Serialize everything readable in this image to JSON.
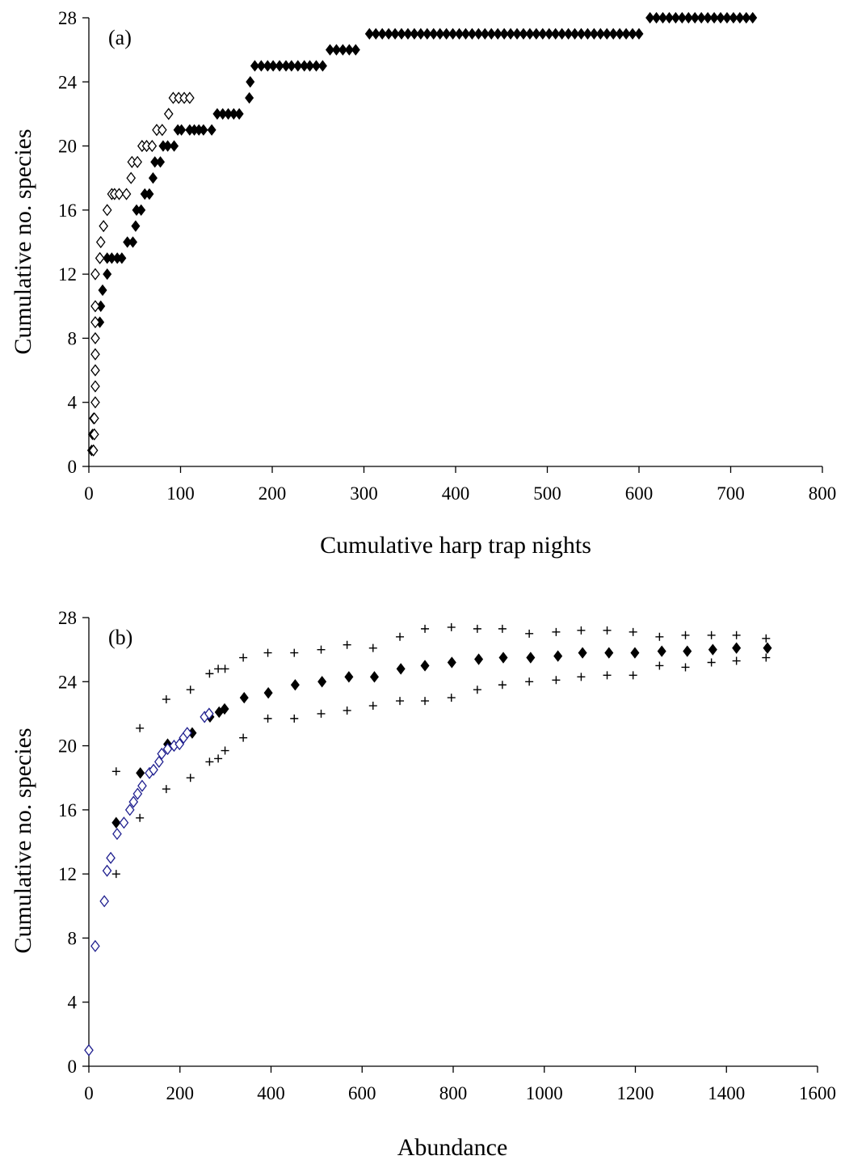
{
  "chart_data": [
    {
      "type": "scatter",
      "panel_label": "(a)",
      "xlabel": "Cumulative harp trap nights",
      "ylabel": "Cumulative no. species",
      "xlim": [
        0,
        800
      ],
      "ylim": [
        0,
        28
      ],
      "x_ticks": [
        0,
        100,
        200,
        300,
        400,
        500,
        600,
        700,
        800
      ],
      "y_ticks": [
        0,
        4,
        8,
        12,
        16,
        20,
        24,
        28
      ],
      "grid": false,
      "legend": "none",
      "series": [
        {
          "marker": "filled-diamond",
          "color": "#000000",
          "points": [
            [
              3,
              1
            ],
            [
              4,
              2
            ],
            [
              5,
              3
            ],
            [
              12,
              9
            ],
            [
              13,
              10
            ],
            [
              15,
              11
            ],
            [
              20,
              12
            ],
            [
              20,
              13
            ],
            [
              25,
              13
            ],
            [
              31,
              13
            ],
            [
              36,
              13
            ],
            [
              42,
              14
            ],
            [
              48,
              14
            ],
            [
              51,
              15
            ],
            [
              52,
              16
            ],
            [
              57,
              16
            ],
            [
              61,
              17
            ],
            [
              66,
              17
            ],
            [
              70,
              18
            ],
            [
              72,
              19
            ],
            [
              78,
              19
            ],
            [
              81,
              20
            ],
            [
              86,
              20
            ],
            [
              93,
              20
            ],
            [
              97,
              21
            ],
            [
              101,
              21
            ],
            [
              110,
              21
            ],
            [
              115,
              21
            ],
            [
              120,
              21
            ],
            [
              125,
              21
            ],
            [
              134,
              21
            ],
            [
              140,
              22
            ],
            [
              146,
              22
            ],
            [
              152,
              22
            ],
            [
              158,
              22
            ],
            [
              164,
              22
            ],
            [
              175,
              23
            ],
            [
              176,
              24
            ],
            [
              181,
              25
            ],
            [
              188,
              25
            ],
            [
              195,
              25
            ],
            [
              201,
              25
            ],
            [
              208,
              25
            ],
            [
              215,
              25
            ],
            [
              221,
              25
            ],
            [
              228,
              25
            ],
            [
              235,
              25
            ],
            [
              241,
              25
            ],
            [
              248,
              25
            ],
            [
              255,
              25
            ],
            [
              263,
              26
            ],
            [
              270,
              26
            ],
            [
              277,
              26
            ],
            [
              284,
              26
            ],
            [
              291,
              26
            ],
            [
              306,
              27
            ],
            [
              313,
              27
            ],
            [
              320,
              27
            ],
            [
              327,
              27
            ],
            [
              334,
              27
            ],
            [
              341,
              27
            ],
            [
              348,
              27
            ],
            [
              355,
              27
            ],
            [
              362,
              27
            ],
            [
              369,
              27
            ],
            [
              376,
              27
            ],
            [
              383,
              27
            ],
            [
              390,
              27
            ],
            [
              397,
              27
            ],
            [
              404,
              27
            ],
            [
              411,
              27
            ],
            [
              418,
              27
            ],
            [
              425,
              27
            ],
            [
              432,
              27
            ],
            [
              439,
              27
            ],
            [
              446,
              27
            ],
            [
              453,
              27
            ],
            [
              460,
              27
            ],
            [
              467,
              27
            ],
            [
              474,
              27
            ],
            [
              481,
              27
            ],
            [
              488,
              27
            ],
            [
              495,
              27
            ],
            [
              502,
              27
            ],
            [
              509,
              27
            ],
            [
              516,
              27
            ],
            [
              523,
              27
            ],
            [
              530,
              27
            ],
            [
              537,
              27
            ],
            [
              544,
              27
            ],
            [
              551,
              27
            ],
            [
              558,
              27
            ],
            [
              565,
              27
            ],
            [
              572,
              27
            ],
            [
              579,
              27
            ],
            [
              586,
              27
            ],
            [
              593,
              27
            ],
            [
              600,
              27
            ],
            [
              612,
              28
            ],
            [
              619,
              28
            ],
            [
              626,
              28
            ],
            [
              633,
              28
            ],
            [
              640,
              28
            ],
            [
              647,
              28
            ],
            [
              654,
              28
            ],
            [
              661,
              28
            ],
            [
              668,
              28
            ],
            [
              675,
              28
            ],
            [
              682,
              28
            ],
            [
              689,
              28
            ],
            [
              696,
              28
            ],
            [
              703,
              28
            ],
            [
              710,
              28
            ],
            [
              717,
              28
            ],
            [
              724,
              28
            ]
          ]
        },
        {
          "marker": "open-diamond",
          "color": "#000000",
          "points": [
            [
              5,
              1
            ],
            [
              6,
              2
            ],
            [
              6,
              3
            ],
            [
              7,
              4
            ],
            [
              7,
              5
            ],
            [
              7,
              6
            ],
            [
              7,
              7
            ],
            [
              7,
              8
            ],
            [
              7,
              9
            ],
            [
              7,
              10
            ],
            [
              7,
              12
            ],
            [
              12,
              13
            ],
            [
              13,
              14
            ],
            [
              16,
              15
            ],
            [
              20,
              16
            ],
            [
              25,
              17
            ],
            [
              28,
              17
            ],
            [
              33,
              17
            ],
            [
              41,
              17
            ],
            [
              46,
              18
            ],
            [
              47,
              19
            ],
            [
              53,
              19
            ],
            [
              58,
              20
            ],
            [
              63,
              20
            ],
            [
              69,
              20
            ],
            [
              74,
              21
            ],
            [
              80,
              21
            ],
            [
              87,
              22
            ],
            [
              92,
              23
            ],
            [
              98,
              23
            ],
            [
              104,
              23
            ],
            [
              110,
              23
            ]
          ]
        }
      ]
    },
    {
      "type": "scatter",
      "panel_label": "(b)",
      "xlabel": "Abundance",
      "ylabel": "Cumulative no. species",
      "xlim": [
        0,
        1600
      ],
      "ylim": [
        0,
        28
      ],
      "x_ticks": [
        0,
        200,
        400,
        600,
        800,
        1000,
        1200,
        1400,
        1600
      ],
      "y_ticks": [
        0,
        4,
        8,
        12,
        16,
        20,
        24,
        28
      ],
      "grid": false,
      "legend": "none",
      "series": [
        {
          "marker": "filled-diamond",
          "color": "#000000",
          "points": [
            [
              60,
              15.2
            ],
            [
              113,
              18.3
            ],
            [
              173,
              20.1
            ],
            [
              227,
              20.8
            ],
            [
              266,
              21.8
            ],
            [
              286,
              22.1
            ],
            [
              298,
              22.3
            ],
            [
              341,
              23.0
            ],
            [
              394,
              23.3
            ],
            [
              453,
              23.8
            ],
            [
              512,
              24.0
            ],
            [
              571,
              24.3
            ],
            [
              627,
              24.3
            ],
            [
              685,
              24.8
            ],
            [
              738,
              25.0
            ],
            [
              797,
              25.2
            ],
            [
              856,
              25.4
            ],
            [
              910,
              25.5
            ],
            [
              970,
              25.5
            ],
            [
              1030,
              25.6
            ],
            [
              1084,
              25.8
            ],
            [
              1142,
              25.8
            ],
            [
              1199,
              25.8
            ],
            [
              1258,
              25.9
            ],
            [
              1314,
              25.9
            ],
            [
              1370,
              26.0
            ],
            [
              1422,
              26.1
            ],
            [
              1490,
              26.1
            ]
          ]
        },
        {
          "marker": "plus",
          "color": "#000000",
          "points": [
            [
              60,
              12.0
            ],
            [
              60,
              18.4
            ],
            [
              112,
              15.5
            ],
            [
              112,
              21.1
            ],
            [
              170,
              17.3
            ],
            [
              170,
              22.9
            ],
            [
              223,
              18.0
            ],
            [
              223,
              23.5
            ],
            [
              265,
              19.0
            ],
            [
              265,
              24.5
            ],
            [
              284,
              19.2
            ],
            [
              284,
              24.8
            ],
            [
              299,
              19.7
            ],
            [
              299,
              24.8
            ],
            [
              339,
              20.5
            ],
            [
              339,
              25.5
            ],
            [
              393,
              21.7
            ],
            [
              393,
              25.8
            ],
            [
              451,
              21.7
            ],
            [
              451,
              25.8
            ],
            [
              510,
              22.0
            ],
            [
              510,
              26.0
            ],
            [
              567,
              22.2
            ],
            [
              567,
              26.3
            ],
            [
              624,
              22.5
            ],
            [
              624,
              26.1
            ],
            [
              683,
              22.8
            ],
            [
              683,
              26.8
            ],
            [
              738,
              22.8
            ],
            [
              738,
              27.3
            ],
            [
              796,
              23.0
            ],
            [
              796,
              27.4
            ],
            [
              853,
              23.5
            ],
            [
              853,
              27.3
            ],
            [
              908,
              23.8
            ],
            [
              908,
              27.3
            ],
            [
              967,
              24.0
            ],
            [
              967,
              27.0
            ],
            [
              1026,
              24.1
            ],
            [
              1026,
              27.1
            ],
            [
              1081,
              24.3
            ],
            [
              1081,
              27.2
            ],
            [
              1138,
              24.4
            ],
            [
              1138,
              27.2
            ],
            [
              1195,
              24.4
            ],
            [
              1195,
              27.1
            ],
            [
              1253,
              25.0
            ],
            [
              1253,
              26.8
            ],
            [
              1310,
              24.9
            ],
            [
              1310,
              26.9
            ],
            [
              1367,
              25.2
            ],
            [
              1367,
              26.9
            ],
            [
              1422,
              25.3
            ],
            [
              1422,
              26.9
            ],
            [
              1487,
              25.5
            ],
            [
              1487,
              26.7
            ]
          ]
        },
        {
          "marker": "open-diamond",
          "color": "#1f1f8f",
          "points": [
            [
              0,
              1.0
            ],
            [
              14,
              7.5
            ],
            [
              34,
              10.3
            ],
            [
              40,
              12.2
            ],
            [
              48,
              13.0
            ],
            [
              62,
              14.5
            ],
            [
              77,
              15.2
            ],
            [
              90,
              16.0
            ],
            [
              98,
              16.5
            ],
            [
              107,
              17.0
            ],
            [
              117,
              17.5
            ],
            [
              133,
              18.3
            ],
            [
              142,
              18.5
            ],
            [
              154,
              19.0
            ],
            [
              160,
              19.5
            ],
            [
              173,
              19.8
            ],
            [
              187,
              20.0
            ],
            [
              199,
              20.1
            ],
            [
              208,
              20.5
            ],
            [
              216,
              20.8
            ],
            [
              254,
              21.8
            ],
            [
              264,
              22.0
            ]
          ]
        }
      ]
    }
  ]
}
